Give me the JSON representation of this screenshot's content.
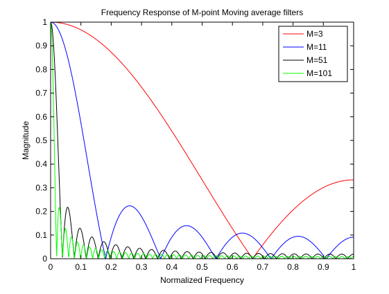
{
  "chart_data": {
    "type": "line",
    "title": "Frequency Response of M-point Moving average filters",
    "xlabel": "Normalized Frequency",
    "ylabel": "Magnitude",
    "xlim": [
      0,
      1
    ],
    "ylim": [
      0,
      1
    ],
    "x_ticks": [
      "0",
      "0.1",
      "0.2",
      "0.3",
      "0.4",
      "0.5",
      "0.6",
      "0.7",
      "0.8",
      "0.9",
      "1"
    ],
    "y_ticks": [
      "0",
      "0.1",
      "0.2",
      "0.3",
      "0.4",
      "0.5",
      "0.6",
      "0.7",
      "0.8",
      "0.9",
      "1"
    ],
    "grid": false,
    "legend_position": "top-right",
    "x_samples": 1001,
    "series": [
      {
        "name": "M=3",
        "M": 3,
        "color": "#ff0000",
        "formula": "|sin(pi*M*f/2) / (M*sin(pi*f/2))|",
        "key_points": {
          "first_null_x": 0.667,
          "value_at_x1": 0.333
        }
      },
      {
        "name": "M=11",
        "M": 11,
        "color": "#0000ff",
        "formula": "|sin(pi*M*f/2) / (M*sin(pi*f/2))|",
        "key_points": {
          "first_null_x": 0.182,
          "sidelobe_peak": 0.22
        }
      },
      {
        "name": "M=51",
        "M": 51,
        "color": "#000000",
        "formula": "|sin(pi*M*f/2) / (M*sin(pi*f/2))|",
        "key_points": {
          "first_null_x": 0.039,
          "sidelobe_peak": 0.217
        }
      },
      {
        "name": "M=101",
        "M": 101,
        "color": "#00ff00",
        "formula": "|sin(pi*M*f/2) / (M*sin(pi*f/2))|",
        "key_points": {
          "first_null_x": 0.0198,
          "sidelobe_peak": 0.217
        }
      }
    ]
  }
}
